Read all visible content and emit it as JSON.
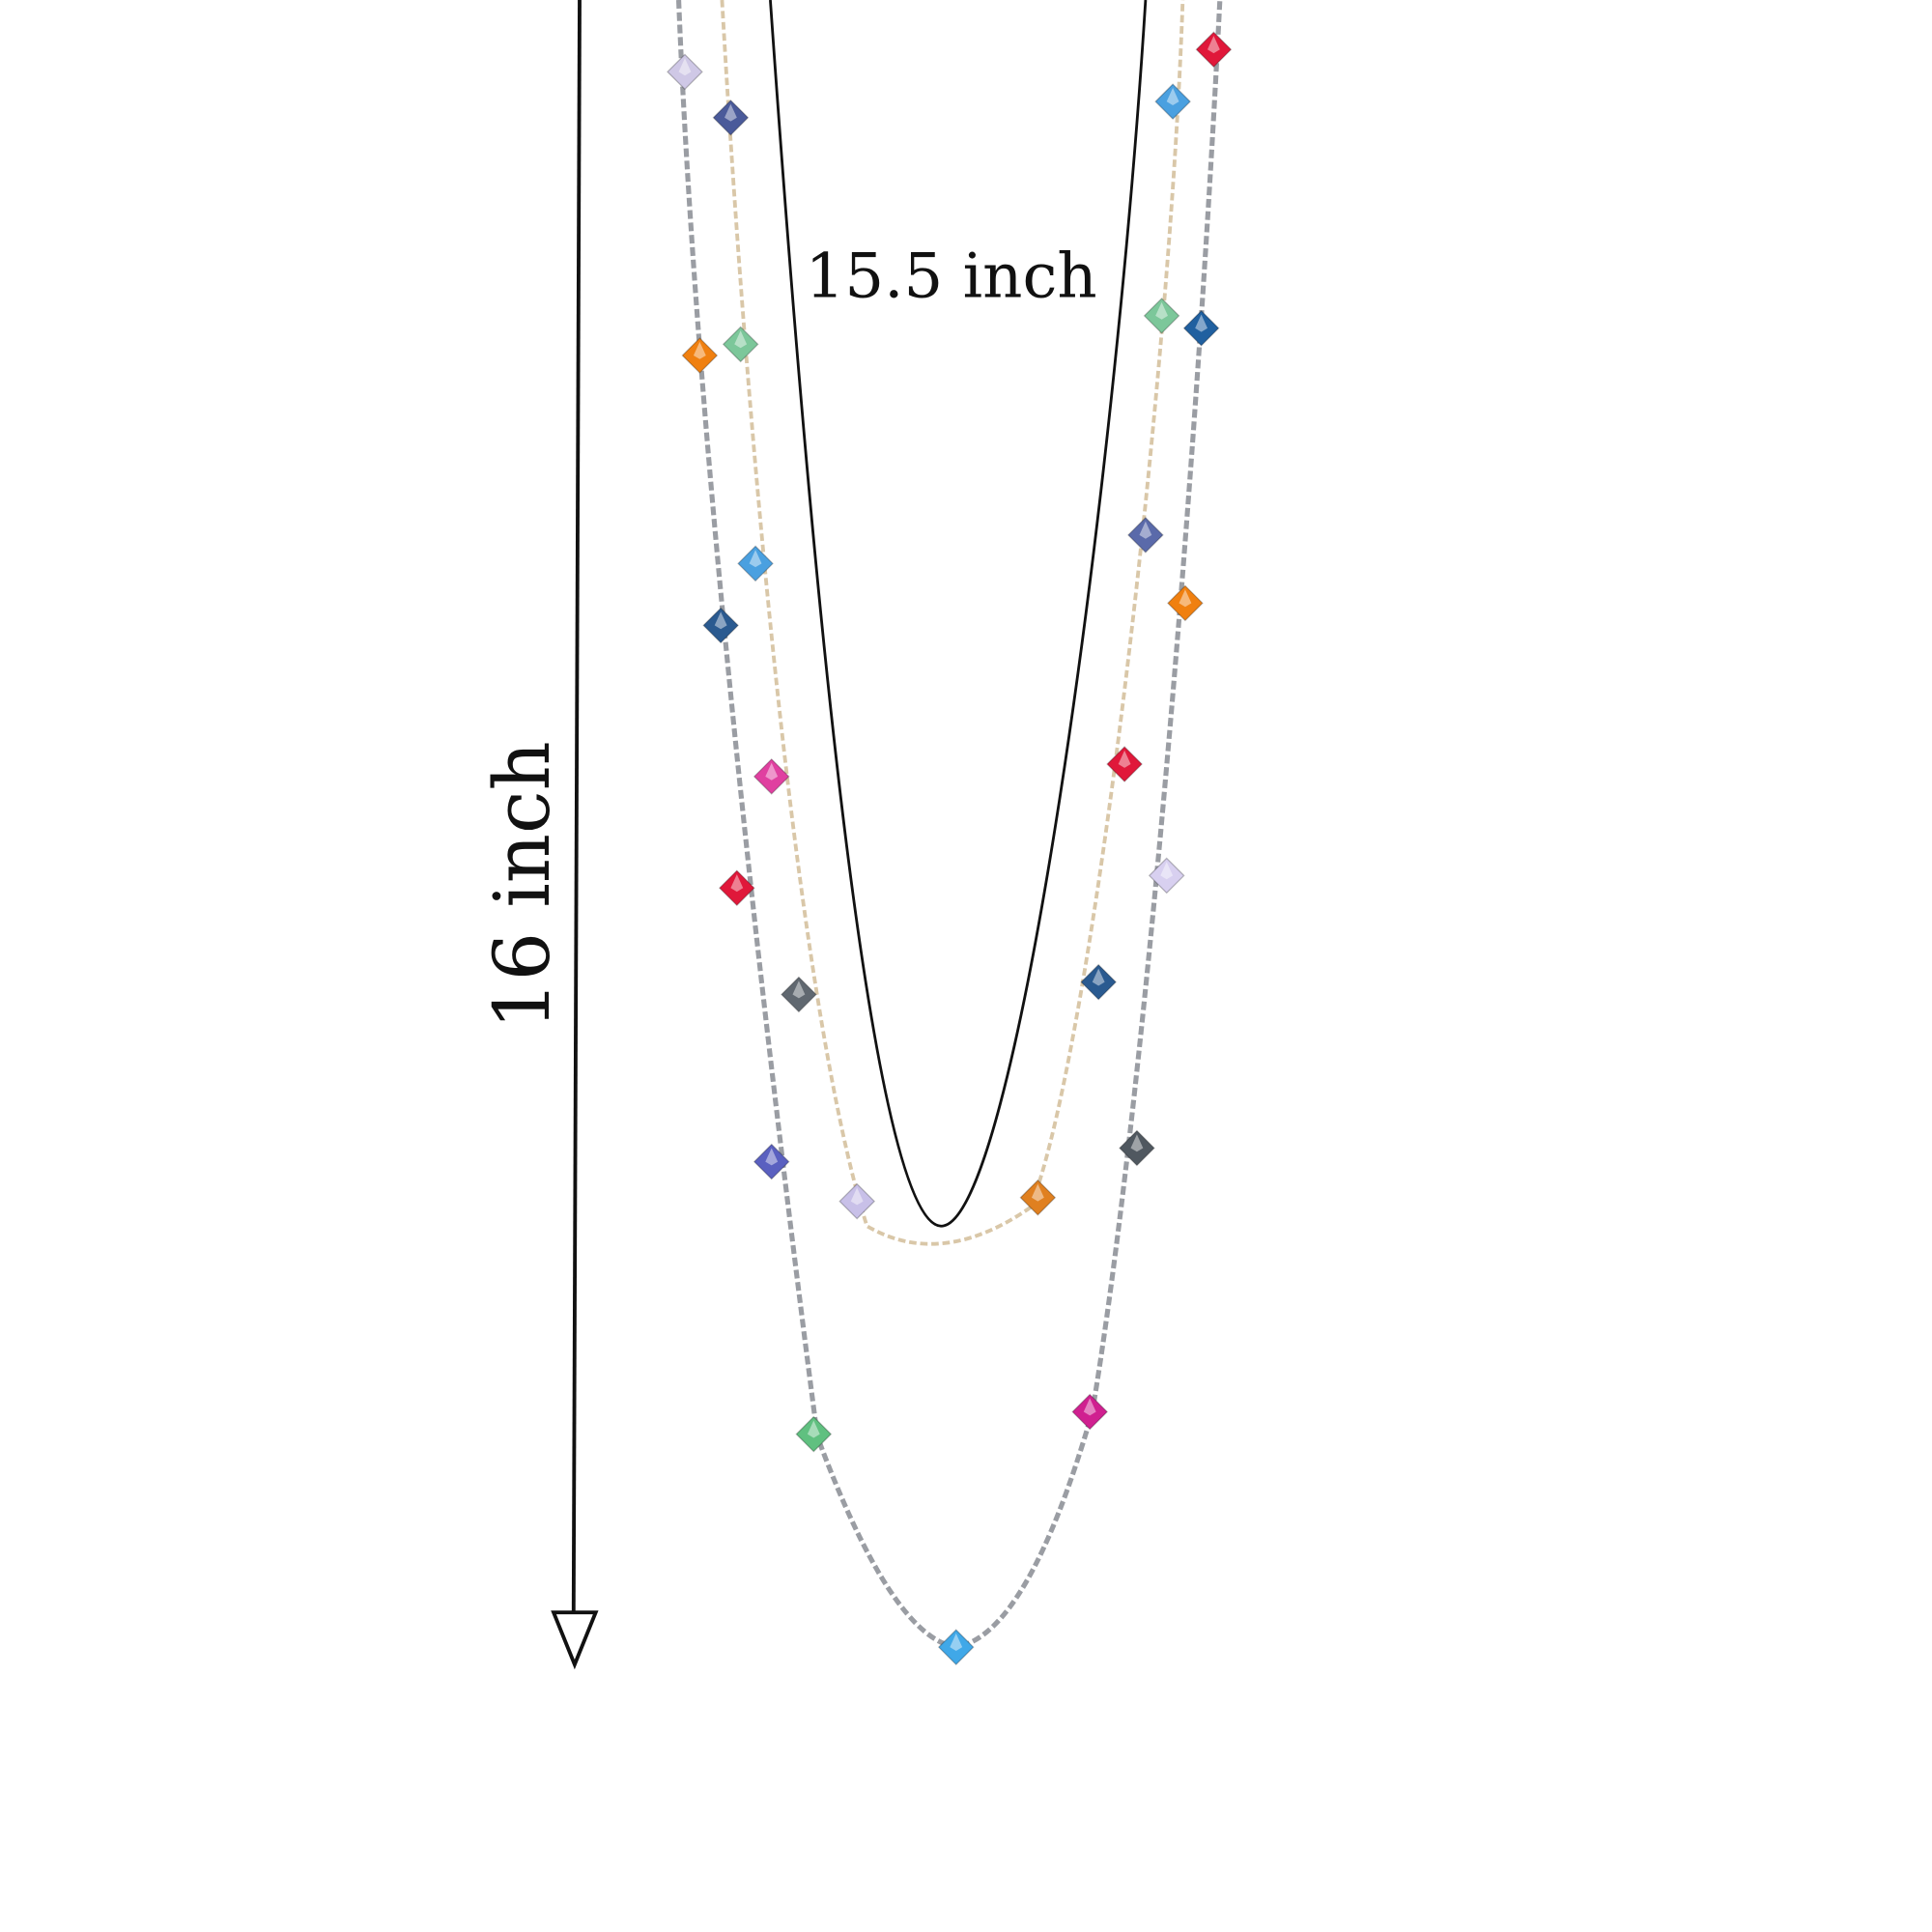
{
  "annotations": {
    "inner_length": "15.5 inch",
    "outer_length": "16 inch"
  }
}
